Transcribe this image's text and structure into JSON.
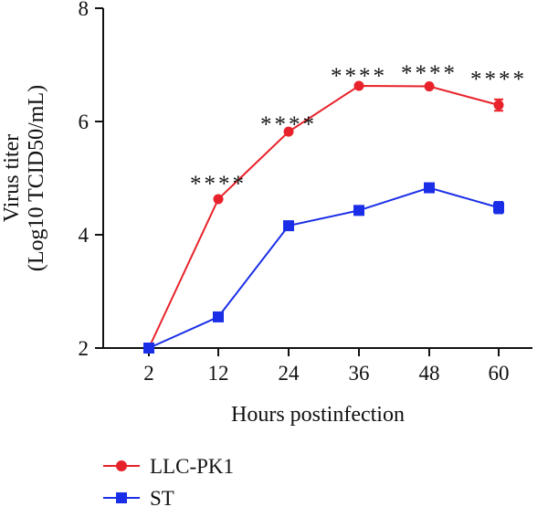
{
  "chart_data": {
    "type": "line",
    "xlabel": "Hours postinfection",
    "ylabel_lines": [
      "Virus titer",
      "(Log10 TCID50/mL)"
    ],
    "x": [
      "2",
      "12",
      "24",
      "36",
      "48",
      "60"
    ],
    "ylim": [
      2,
      8
    ],
    "yticks": [
      "2",
      "4",
      "6",
      "8"
    ],
    "grid": false,
    "legend_position": "bottom-left",
    "series": [
      {
        "name": "LLC-PK1",
        "color": "#e8222a",
        "marker": "circle",
        "values": [
          2.0,
          4.63,
          5.82,
          6.63,
          6.62,
          6.29
        ],
        "errors": [
          0,
          0,
          0,
          0,
          0,
          0.1
        ]
      },
      {
        "name": "ST",
        "color": "#1a2ee8",
        "marker": "square",
        "values": [
          2.0,
          2.55,
          4.16,
          4.43,
          4.83,
          4.48
        ],
        "errors": [
          0,
          0,
          0,
          0,
          0,
          0.1
        ]
      }
    ],
    "annotations": [
      {
        "x": "12",
        "y": 5.0,
        "text": "****"
      },
      {
        "x": "24",
        "y": 6.05,
        "text": "****"
      },
      {
        "x": "36",
        "y": 6.9,
        "text": "****"
      },
      {
        "x": "48",
        "y": 6.95,
        "text": "****"
      },
      {
        "x": "60",
        "y": 6.85,
        "text": "****"
      }
    ]
  }
}
